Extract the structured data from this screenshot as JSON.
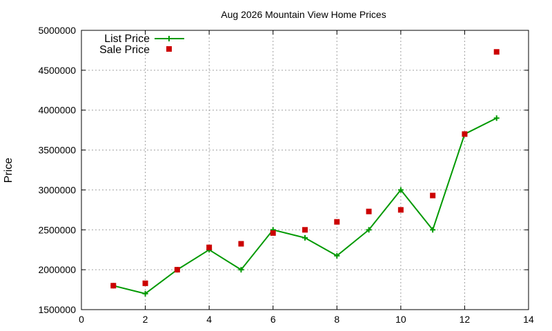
{
  "chart_data": {
    "type": "line",
    "title": "Aug 2026 Mountain View Home Prices",
    "xlabel": "",
    "ylabel": "Price",
    "xlim": [
      0,
      14
    ],
    "ylim": [
      1500000,
      5000000
    ],
    "xticks": [
      0,
      2,
      4,
      6,
      8,
      10,
      12,
      14
    ],
    "yticks": [
      1500000,
      2000000,
      2500000,
      3000000,
      3500000,
      4000000,
      4500000,
      5000000
    ],
    "grid": true,
    "legend_position": "top-left",
    "series": [
      {
        "name": "List Price",
        "style": "line+cross",
        "color": "#009900",
        "x": [
          1,
          2,
          3,
          4,
          5,
          6,
          7,
          8,
          9,
          10,
          11,
          12,
          13
        ],
        "y": [
          1800000,
          1700000,
          2000000,
          2250000,
          2000000,
          2500000,
          2400000,
          2175000,
          2500000,
          3000000,
          2500000,
          3700000,
          3900000
        ]
      },
      {
        "name": "Sale Price",
        "style": "square-points",
        "color": "#cc0000",
        "x": [
          1,
          2,
          3,
          4,
          5,
          6,
          7,
          8,
          9,
          10,
          11,
          12,
          13
        ],
        "y": [
          1800000,
          1830000,
          2000000,
          2280000,
          2325000,
          2460000,
          2500000,
          2600000,
          2730000,
          2750000,
          2930000,
          3700000,
          4730000
        ]
      }
    ]
  }
}
